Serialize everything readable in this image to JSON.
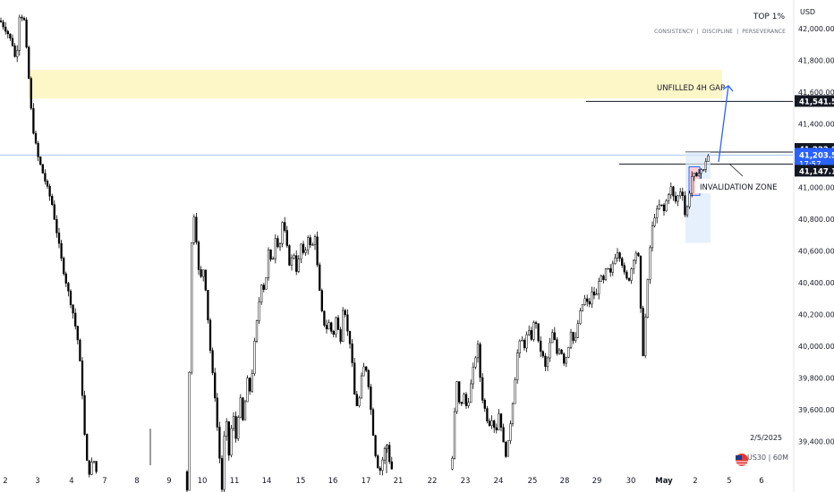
{
  "branding": {
    "title": "TOP 1%",
    "subtitle": "CONSISTENCY  |  DISCIPLINE  |  PERSEVERANCE"
  },
  "currency_label": "USD",
  "bottom_info": {
    "date": "2/5/2025",
    "symbol": "US30 | 60M"
  },
  "annotations": {
    "gap_label": "UNFILLED 4H GAP",
    "invalidation_label": "INVALIDATION ZONE"
  },
  "colors": {
    "gap_zone": "#fdf7c8",
    "arrow": "#2962ff",
    "candle_up": "#ffffff",
    "candle_down": "#000000",
    "price_tag_dark": "#131722",
    "price_tag_current": "#2962ff",
    "invalidation_fill": "#ffcdd2",
    "current_box": "#dbe9fb"
  },
  "chart_data": {
    "type": "candlestick",
    "ylim": [
      39250,
      42150
    ],
    "y_ticks": [
      "42,000.00",
      "41,800.00",
      "41,600.00",
      "41,400.00",
      "41,200.00",
      "41,000.00",
      "40,800.00",
      "40,600.00",
      "40,400.00",
      "40,200.00",
      "40,000.00",
      "39,800.00",
      "39,600.00",
      "39,400.00"
    ],
    "y_tick_values": [
      42000,
      41800,
      41600,
      41400,
      41200,
      41000,
      40800,
      40600,
      40400,
      40200,
      40000,
      39800,
      39600,
      39400
    ],
    "x_ticks": [
      "2",
      "3",
      "4",
      "7",
      "8",
      "9",
      "10",
      "11",
      "14",
      "15",
      "16",
      "17",
      "21",
      "22",
      "23",
      "24",
      "25",
      "28",
      "29",
      "30",
      "May",
      "2",
      "5",
      "6"
    ],
    "price_levels": [
      {
        "value": 41541.52,
        "label": "41,541.52",
        "style": "dark"
      },
      {
        "value": 41222.81,
        "label": "41,222.81",
        "style": "dark"
      },
      {
        "value": 41203.5,
        "label": "41,203.50",
        "style": "current",
        "sub": "17:57"
      },
      {
        "value": 41147.18,
        "label": "41,147.18",
        "style": "dark"
      }
    ],
    "gap_zone": [
      41560,
      41740
    ],
    "path": [
      [
        0,
        42050
      ],
      [
        8,
        41980
      ],
      [
        14,
        41900
      ],
      [
        18,
        41780
      ],
      [
        22,
        42100
      ],
      [
        27,
        42050
      ],
      [
        32,
        41700
      ],
      [
        36,
        41400
      ],
      [
        42,
        41200
      ],
      [
        50,
        41050
      ],
      [
        58,
        40900
      ],
      [
        64,
        40700
      ],
      [
        70,
        40500
      ],
      [
        76,
        40350
      ],
      [
        82,
        40200
      ],
      [
        88,
        40000
      ],
      [
        92,
        39700
      ],
      [
        96,
        39300
      ],
      [
        100,
        39200
      ],
      [
        104,
        39300
      ],
      [
        108,
        39200
      ],
      [
        210,
        39100
      ],
      [
        213,
        40500
      ],
      [
        216,
        40870
      ],
      [
        219,
        40700
      ],
      [
        223,
        40400
      ],
      [
        228,
        40500
      ],
      [
        232,
        40200
      ],
      [
        236,
        39900
      ],
      [
        240,
        39700
      ],
      [
        244,
        39400
      ],
      [
        248,
        39100
      ],
      [
        252,
        39600
      ],
      [
        256,
        39300
      ],
      [
        260,
        39600
      ],
      [
        264,
        39400
      ],
      [
        268,
        39700
      ],
      [
        272,
        39500
      ],
      [
        276,
        39800
      ],
      [
        280,
        39700
      ],
      [
        284,
        40000
      ],
      [
        288,
        40200
      ],
      [
        292,
        40400
      ],
      [
        296,
        40350
      ],
      [
        300,
        40600
      ],
      [
        304,
        40500
      ],
      [
        308,
        40700
      ],
      [
        312,
        40600
      ],
      [
        316,
        40800
      ],
      [
        320,
        40650
      ],
      [
        324,
        40500
      ],
      [
        328,
        40600
      ],
      [
        332,
        40450
      ],
      [
        336,
        40650
      ],
      [
        340,
        40550
      ],
      [
        344,
        40700
      ],
      [
        348,
        40600
      ],
      [
        352,
        40700
      ],
      [
        356,
        40400
      ],
      [
        360,
        40200
      ],
      [
        364,
        40100
      ],
      [
        368,
        40150
      ],
      [
        372,
        40050
      ],
      [
        376,
        40200
      ],
      [
        380,
        40000
      ],
      [
        384,
        40300
      ],
      [
        388,
        40100
      ],
      [
        392,
        40000
      ],
      [
        396,
        39700
      ],
      [
        400,
        39600
      ],
      [
        404,
        39800
      ],
      [
        408,
        39900
      ],
      [
        412,
        39750
      ],
      [
        416,
        39500
      ],
      [
        420,
        39300
      ],
      [
        424,
        39200
      ],
      [
        428,
        39300
      ],
      [
        432,
        39400
      ],
      [
        436,
        39250
      ],
      [
        440,
        39200
      ],
      [
        505,
        39250
      ],
      [
        510,
        39800
      ],
      [
        514,
        39600
      ],
      [
        518,
        39700
      ],
      [
        522,
        39600
      ],
      [
        526,
        39750
      ],
      [
        530,
        39900
      ],
      [
        534,
        40000
      ],
      [
        538,
        39700
      ],
      [
        542,
        39600
      ],
      [
        546,
        39500
      ],
      [
        550,
        39550
      ],
      [
        554,
        39450
      ],
      [
        558,
        39600
      ],
      [
        562,
        39400
      ],
      [
        566,
        39300
      ],
      [
        570,
        39500
      ],
      [
        574,
        39700
      ],
      [
        578,
        39950
      ],
      [
        582,
        40050
      ],
      [
        586,
        40000
      ],
      [
        590,
        40100
      ],
      [
        594,
        40050
      ],
      [
        598,
        40200
      ],
      [
        602,
        40000
      ],
      [
        606,
        39950
      ],
      [
        610,
        39850
      ],
      [
        614,
        40000
      ],
      [
        618,
        40100
      ],
      [
        622,
        39950
      ],
      [
        626,
        40000
      ],
      [
        630,
        39900
      ],
      [
        634,
        39950
      ],
      [
        638,
        40100
      ],
      [
        642,
        40000
      ],
      [
        646,
        40150
      ],
      [
        650,
        40250
      ],
      [
        654,
        40300
      ],
      [
        658,
        40250
      ],
      [
        662,
        40350
      ],
      [
        666,
        40300
      ],
      [
        670,
        40450
      ],
      [
        674,
        40400
      ],
      [
        678,
        40500
      ],
      [
        682,
        40450
      ],
      [
        686,
        40550
      ],
      [
        690,
        40600
      ],
      [
        694,
        40550
      ],
      [
        698,
        40450
      ],
      [
        702,
        40400
      ],
      [
        706,
        40500
      ],
      [
        710,
        40600
      ],
      [
        714,
        40550
      ],
      [
        718,
        39900
      ],
      [
        722,
        40250
      ],
      [
        726,
        40600
      ],
      [
        730,
        40800
      ],
      [
        734,
        40850
      ],
      [
        738,
        40900
      ],
      [
        742,
        40850
      ],
      [
        746,
        40950
      ],
      [
        750,
        41000
      ],
      [
        754,
        40900
      ],
      [
        758,
        40950
      ],
      [
        762,
        41000
      ],
      [
        766,
        40800
      ],
      [
        770,
        40950
      ],
      [
        774,
        41100
      ],
      [
        778,
        41050
      ],
      [
        782,
        41120
      ],
      [
        786,
        41100
      ],
      [
        790,
        41200
      ]
    ]
  }
}
